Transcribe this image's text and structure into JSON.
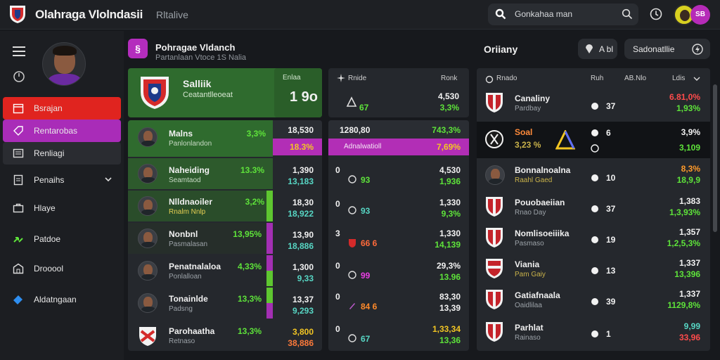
{
  "header": {
    "title": "Olahraga Vlolndasii",
    "subtitle": "Rltalive",
    "search_text": "Gonkahaa man",
    "notif_badge": "SB"
  },
  "sidebar": {
    "items": [
      {
        "label": "Bsrajan",
        "icon": "calendar-icon",
        "style": "red"
      },
      {
        "label": "Rentarobas",
        "icon": "tag-icon",
        "style": "purple"
      },
      {
        "label": "Renliagi",
        "icon": "list-icon",
        "style": "dark"
      },
      {
        "label": "Penaihs",
        "icon": "document-icon",
        "style": "plain",
        "chevron": true
      },
      {
        "label": "Hlaye",
        "icon": "briefcase-icon",
        "style": "plain"
      },
      {
        "label": "Patdoe",
        "icon": "arrow-icon",
        "style": "plain"
      },
      {
        "label": "Drooool",
        "icon": "building-icon",
        "style": "plain"
      },
      {
        "label": "Aldatngaan",
        "icon": "ticket-icon",
        "style": "plain"
      }
    ]
  },
  "panel": {
    "title": "Pohragae Vldanch",
    "subtitle": "Partanlaan Vtoce 1S Nalia",
    "right_title": "Oriiany",
    "pill1": "A  bl",
    "pill2": "Sadonatllie"
  },
  "feature": {
    "name": "Salliik",
    "sub": "Ceatantlleoeat",
    "right_label": "Enlaa",
    "big_number": "1 9o"
  },
  "mid_header": {
    "left": "Rnide",
    "right": "Ronk",
    "v1": "4,530",
    "v2": "3,3%",
    "n": "67"
  },
  "right_header": {
    "c1": "Rnado",
    "c2": "Ruh",
    "c3": "AB.Nlo",
    "c4": "Ldis"
  },
  "players": [
    {
      "name": "Malns",
      "sub": "Panlonlandon",
      "pct": "3,3%",
      "v1": "18,530",
      "v2": "18.3%"
    },
    {
      "name": "Naheiding",
      "sub": "Seamtaod",
      "pct": "13.3%",
      "v1": "1,390",
      "v2": "13,183"
    },
    {
      "name": "Nlldnaoiler",
      "sub": "Rnalm Nnlp",
      "pct": "3,2%",
      "v1": "18,30",
      "v2": "18,922"
    },
    {
      "name": "Nonbnl",
      "sub": "Pasmalasan",
      "pct": "13,95%",
      "v1": "13,90",
      "v2": "18,886"
    },
    {
      "name": "Penatnalaloa",
      "sub": "Ponlalloan",
      "pct": "4,33%",
      "v1": "1,300",
      "v2": "9,33"
    },
    {
      "name": "Tonainlde",
      "sub": "Padsng",
      "pct": "13,3%",
      "v1": "13,37",
      "v2": "9,293"
    },
    {
      "name": "Parohaatha",
      "sub": "Retnaso",
      "pct": "13,3%",
      "v1": "3,800",
      "v2": "38,886"
    }
  ],
  "middle_rows": [
    {
      "a": "1280,80",
      "b": "743,3%",
      "label": "Adnalwatioll",
      "c": "7,69%"
    },
    {
      "a": "0",
      "n": "93",
      "v1": "4,530",
      "v2": "1,936"
    },
    {
      "a": "0",
      "n": "93",
      "v1": "1,330",
      "v2": "9,3%"
    },
    {
      "a": "3",
      "n": "66 6",
      "v1": "1,330",
      "v2": "14,139"
    },
    {
      "a": "0",
      "n": "99",
      "v1": "29,3%",
      "v2": "13.96"
    },
    {
      "a": "0",
      "n": "84 6",
      "v1": "83,30",
      "v2": "13,39"
    },
    {
      "a": "0",
      "n": "67",
      "v1": "1,33,34",
      "v2": "13,36"
    }
  ],
  "teams": [
    {
      "name": "Canaliny",
      "sub": "Pardbay",
      "rank": "37",
      "v1": "6.81,0%",
      "v2": "1,93%"
    },
    {
      "name": "Soal",
      "sub": "3,23 %",
      "rank": "6",
      "v1": "3,9%",
      "v2": "3,109"
    },
    {
      "name": "Bonnalnoalna",
      "sub": "Raahl Gaed",
      "rank": "10",
      "v1": "8,3%",
      "v2": "18,9,9"
    },
    {
      "name": "Pouobaeiian",
      "sub": "Rnao Day",
      "rank": "37",
      "v1": "1,383",
      "v2": "1,3,93%"
    },
    {
      "name": "Nomlisoeiiika",
      "sub": "Pasmaso",
      "rank": "19",
      "v1": "1,357",
      "v2": "1,2,5,3%"
    },
    {
      "name": "Viania",
      "sub": "Pam Gaiy",
      "rank": "13",
      "v1": "1,337",
      "v2": "13,396"
    },
    {
      "name": "Gatiafnaala",
      "sub": "Oaidlilaa",
      "rank": "39",
      "v1": "1,337",
      "v2": "1129,8%"
    },
    {
      "name": "Parhlat",
      "sub": "Rainaso",
      "rank": "1",
      "v1": "9,99",
      "v2": "33,96"
    }
  ]
}
